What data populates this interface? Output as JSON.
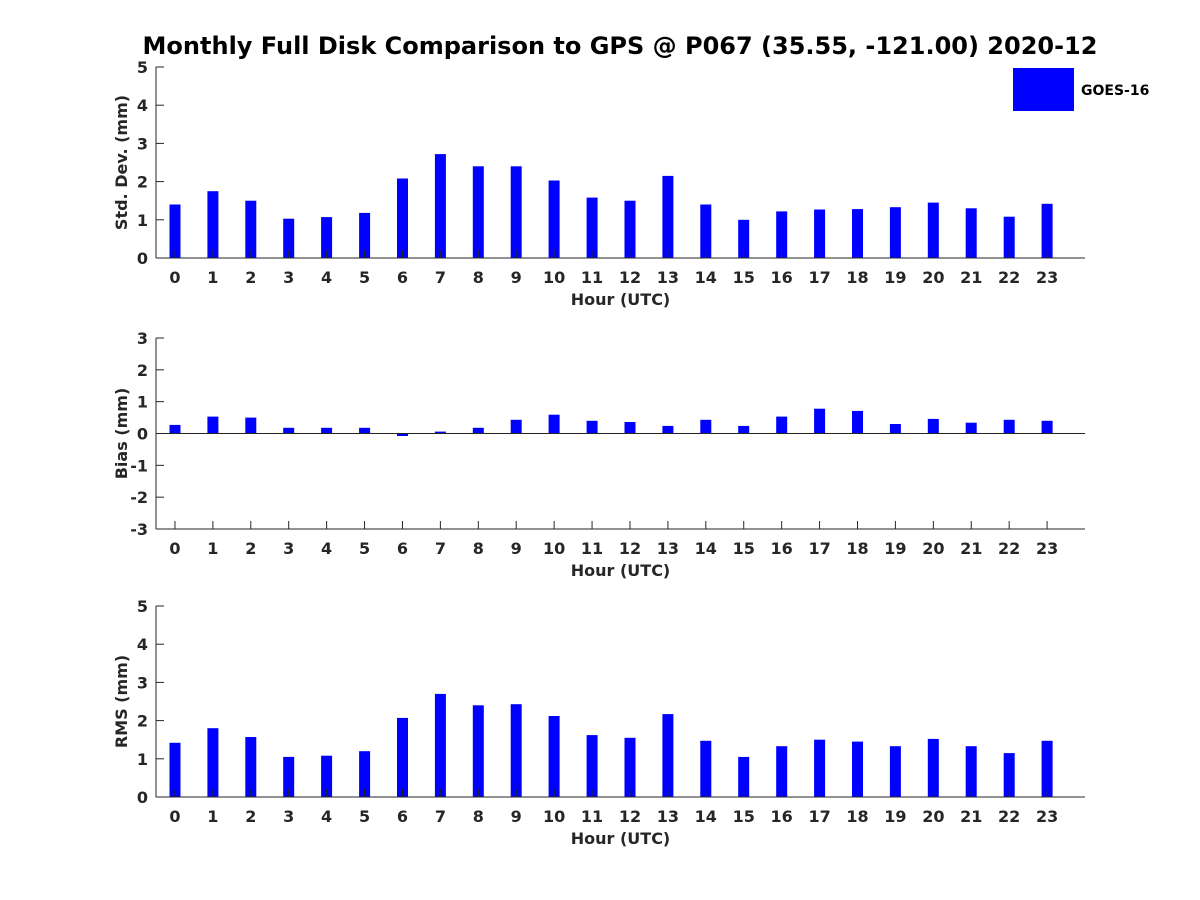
{
  "title": "Monthly Full Disk Comparison to GPS @ P067 (35.55, -121.00) 2020-12",
  "legend": {
    "label": "GOES-16",
    "color": "#0000ff",
    "placement": "top-right"
  },
  "chart_data": [
    {
      "type": "bar",
      "xlabel": "Hour (UTC)",
      "ylabel": "Std. Dev. (mm)",
      "ylim": [
        0,
        5
      ],
      "yticks": [
        0,
        1,
        2,
        3,
        4,
        5
      ],
      "categories": [
        "0",
        "1",
        "2",
        "3",
        "4",
        "5",
        "6",
        "7",
        "8",
        "9",
        "10",
        "11",
        "12",
        "13",
        "14",
        "15",
        "16",
        "17",
        "18",
        "19",
        "20",
        "21",
        "22",
        "23"
      ],
      "series": [
        {
          "name": "GOES-16",
          "color": "#0000ff",
          "values": [
            1.4,
            1.75,
            1.5,
            1.03,
            1.07,
            1.18,
            2.08,
            2.72,
            2.4,
            2.4,
            2.03,
            1.58,
            1.5,
            2.15,
            1.4,
            1.0,
            1.22,
            1.27,
            1.28,
            1.33,
            1.45,
            1.3,
            1.08,
            1.42
          ]
        }
      ],
      "grid": false
    },
    {
      "type": "bar",
      "xlabel": "Hour (UTC)",
      "ylabel": "Bias (mm)",
      "ylim": [
        -3,
        3
      ],
      "yticks": [
        -3,
        -2,
        -1,
        0,
        1,
        2,
        3
      ],
      "categories": [
        "0",
        "1",
        "2",
        "3",
        "4",
        "5",
        "6",
        "7",
        "8",
        "9",
        "10",
        "11",
        "12",
        "13",
        "14",
        "15",
        "16",
        "17",
        "18",
        "19",
        "20",
        "21",
        "22",
        "23"
      ],
      "series": [
        {
          "name": "GOES-16",
          "color": "#0000ff",
          "values": [
            0.27,
            0.53,
            0.5,
            0.18,
            0.18,
            0.18,
            -0.08,
            0.06,
            0.18,
            0.43,
            0.59,
            0.4,
            0.36,
            0.24,
            0.43,
            0.24,
            0.53,
            0.78,
            0.71,
            0.3,
            0.46,
            0.34,
            0.43,
            0.4
          ]
        }
      ],
      "grid": false
    },
    {
      "type": "bar",
      "xlabel": "Hour (UTC)",
      "ylabel": "RMS (mm)",
      "ylim": [
        0,
        5
      ],
      "yticks": [
        0,
        1,
        2,
        3,
        4,
        5
      ],
      "categories": [
        "0",
        "1",
        "2",
        "3",
        "4",
        "5",
        "6",
        "7",
        "8",
        "9",
        "10",
        "11",
        "12",
        "13",
        "14",
        "15",
        "16",
        "17",
        "18",
        "19",
        "20",
        "21",
        "22",
        "23"
      ],
      "series": [
        {
          "name": "GOES-16",
          "color": "#0000ff",
          "values": [
            1.42,
            1.8,
            1.57,
            1.05,
            1.08,
            1.2,
            2.07,
            2.7,
            2.4,
            2.43,
            2.12,
            1.62,
            1.55,
            2.17,
            1.47,
            1.05,
            1.33,
            1.5,
            1.45,
            1.33,
            1.52,
            1.33,
            1.15,
            1.47
          ]
        }
      ],
      "grid": false
    }
  ]
}
